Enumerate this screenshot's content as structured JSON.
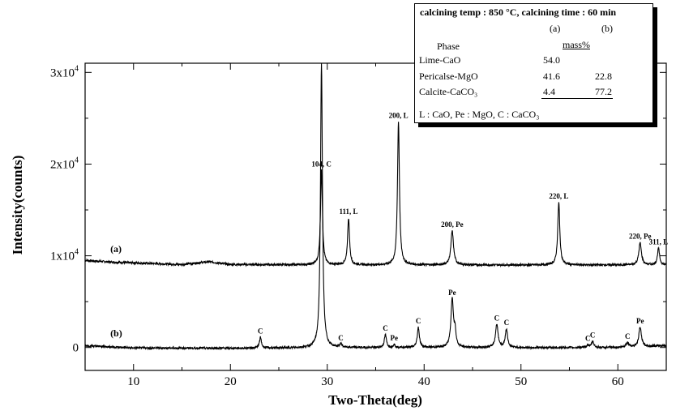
{
  "chart_data": {
    "type": "line",
    "xlabel": "Two-Theta(deg)",
    "ylabel": "Intensity(counts)",
    "xlim": [
      5,
      65
    ],
    "ylim": [
      -2500,
      31000
    ],
    "x_ticks": [
      10,
      20,
      30,
      40,
      50,
      60
    ],
    "x_tick_labels": [
      "10",
      "20",
      "30",
      "40",
      "50",
      "60"
    ],
    "y_ticks": [
      {
        "value": 0,
        "base": "0",
        "exp": ""
      },
      {
        "value": 10000,
        "base": "1x10",
        "exp": "4"
      },
      {
        "value": 20000,
        "base": "2x10",
        "exp": "4"
      },
      {
        "value": 30000,
        "base": "3x10",
        "exp": "4"
      }
    ],
    "series": [
      {
        "name": "(a)",
        "label_at": [
          7.6,
          10400
        ],
        "baseline": [
          [
            5,
            9500
          ],
          [
            8,
            9300
          ],
          [
            15,
            9050
          ],
          [
            17.8,
            9350
          ],
          [
            20,
            9050
          ],
          [
            30,
            9000
          ],
          [
            40,
            9000
          ],
          [
            50,
            9000
          ],
          [
            60,
            9000
          ],
          [
            65,
            9000
          ]
        ],
        "peaks": [
          {
            "x": 29.4,
            "y": 19300,
            "w": 0.12,
            "label": "104, C"
          },
          {
            "x": 32.2,
            "y": 14100,
            "w": 0.12,
            "label": "111, L"
          },
          {
            "x": 37.35,
            "y": 24600,
            "w": 0.12,
            "label": "200, L"
          },
          {
            "x": 42.9,
            "y": 12700,
            "w": 0.16,
            "label": "200, Pe"
          },
          {
            "x": 53.9,
            "y": 15800,
            "w": 0.13,
            "label": "220, L"
          },
          {
            "x": 62.3,
            "y": 11400,
            "w": 0.16,
            "label": "220, Pe"
          },
          {
            "x": 64.2,
            "y": 10800,
            "w": 0.13,
            "label": "311, L"
          }
        ]
      },
      {
        "name": "(b)",
        "label_at": [
          7.6,
          1200
        ],
        "baseline": [
          [
            5,
            200
          ],
          [
            10,
            -50
          ],
          [
            20,
            -80
          ],
          [
            30,
            -30
          ],
          [
            40,
            0
          ],
          [
            50,
            -20
          ],
          [
            60,
            0
          ],
          [
            65,
            200
          ]
        ],
        "peaks": [
          {
            "x": 23.1,
            "y": 1100,
            "w": 0.12,
            "label": "C"
          },
          {
            "x": 29.4,
            "y": 31000,
            "w": 0.12,
            "label": ""
          },
          {
            "x": 31.4,
            "y": 350,
            "w": 0.13,
            "label": "C"
          },
          {
            "x": 36.0,
            "y": 1400,
            "w": 0.13,
            "label": "C"
          },
          {
            "x": 36.9,
            "y": 350,
            "w": 0.1,
            "label": "Pe"
          },
          {
            "x": 39.4,
            "y": 2200,
            "w": 0.13,
            "label": "C"
          },
          {
            "x": 42.9,
            "y": 5300,
            "w": 0.16,
            "label": "Pe"
          },
          {
            "x": 43.2,
            "y": 1500,
            "w": 0.1,
            "label": ""
          },
          {
            "x": 47.5,
            "y": 2500,
            "w": 0.16,
            "label": "C"
          },
          {
            "x": 48.5,
            "y": 2000,
            "w": 0.14,
            "label": "C"
          },
          {
            "x": 56.9,
            "y": 300,
            "w": 0.12,
            "label": "C"
          },
          {
            "x": 57.4,
            "y": 650,
            "w": 0.14,
            "label": "C"
          },
          {
            "x": 61.0,
            "y": 500,
            "w": 0.2,
            "label": "C"
          },
          {
            "x": 62.3,
            "y": 2200,
            "w": 0.16,
            "label": "Pe"
          }
        ]
      }
    ]
  },
  "inset": {
    "header": "calcining temp : 850 °C, calcining time : 60 min",
    "col_a": "(a)",
    "col_b": "(b)",
    "phase_label": "Phase",
    "unit_label": "mass%",
    "rows": [
      {
        "name": "Lime-CaO",
        "a": "54.0",
        "b": ""
      },
      {
        "name": "Pericalse-MgO",
        "a": "41.6",
        "b": "22.8"
      },
      {
        "name": "Calcite-CaCO₃",
        "a": "4.4",
        "b": "77.2"
      }
    ],
    "legend": "L : CaO, Pe : MgO, C : CaCO₃"
  }
}
